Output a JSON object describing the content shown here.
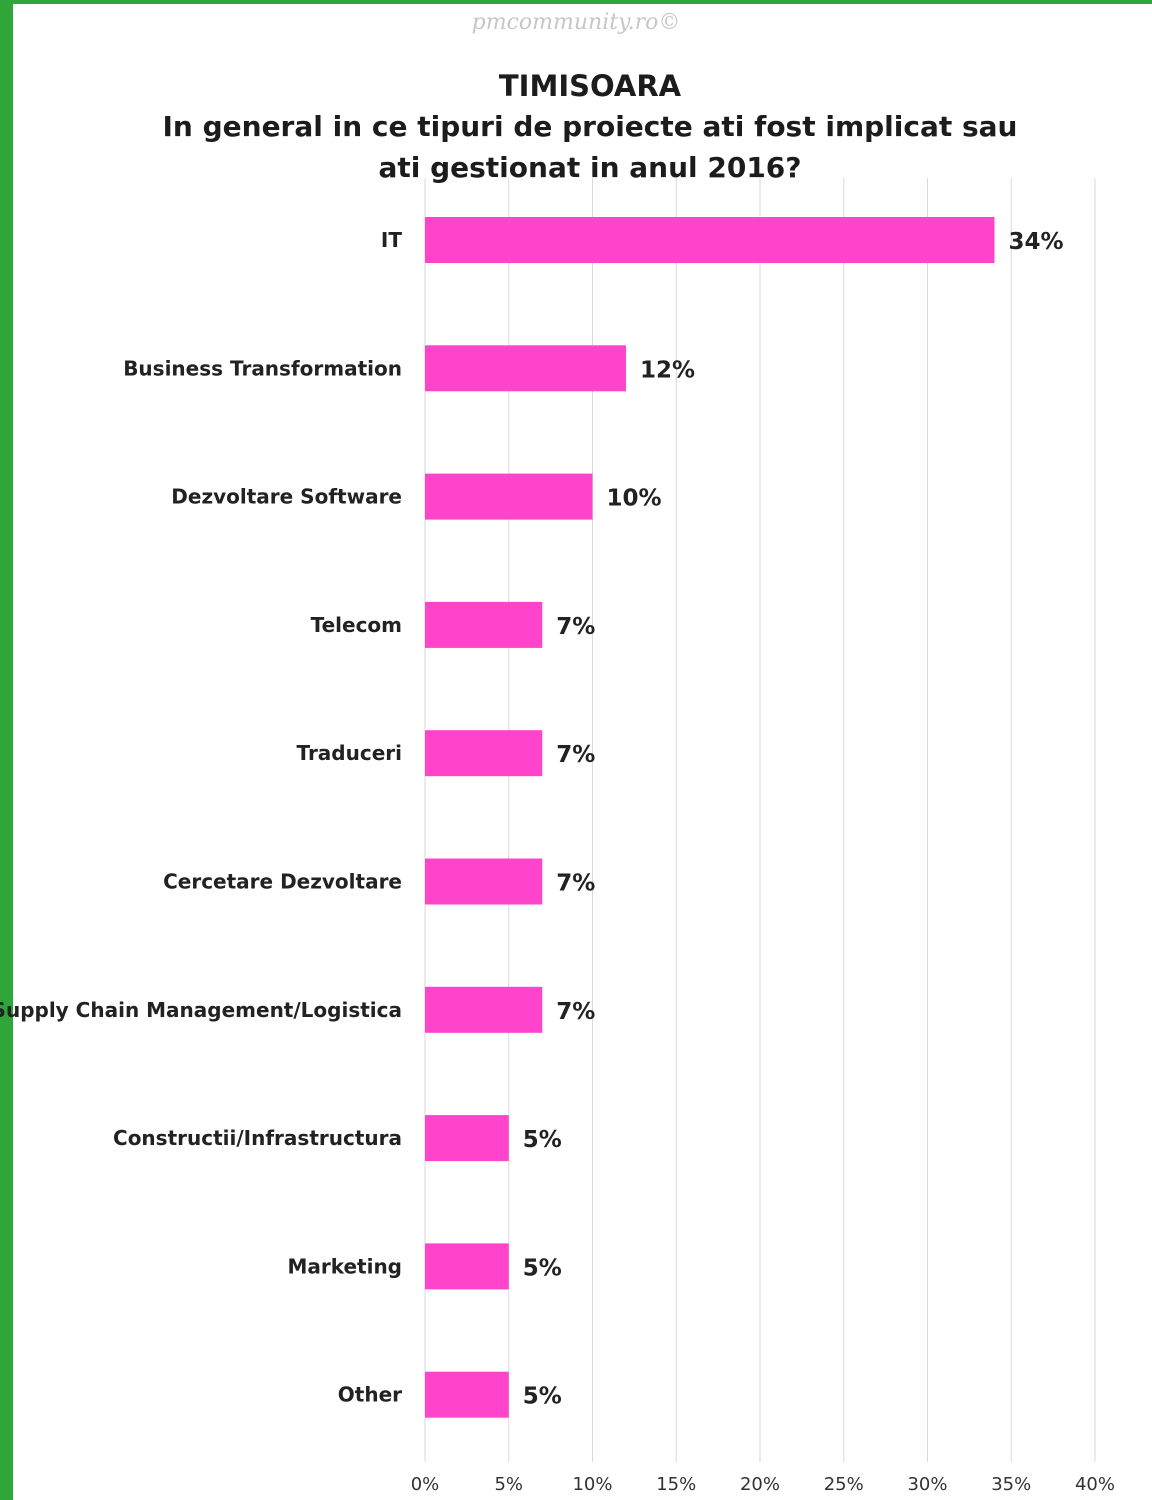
{
  "watermark": "pmcommunity.ro©",
  "colors": {
    "bar": "#ff44cc",
    "grid": "#d9d9d9",
    "frame": "#2fa63a"
  },
  "chart_data": {
    "type": "bar",
    "orientation": "horizontal",
    "title": "TIMISOARA",
    "subtitle": "In general in ce tipuri de proiecte ati fost implicat sau ati gestionat in anul 2016?",
    "categories": [
      "IT",
      "Business Transformation",
      "Dezvoltare Software",
      "Telecom",
      "Traduceri",
      "Cercetare Dezvoltare",
      "Supply Chain Management/Logistica",
      "Constructii/Infrastructura",
      "Marketing",
      "Other"
    ],
    "values": [
      34,
      12,
      10,
      7,
      7,
      7,
      7,
      5,
      5,
      5
    ],
    "value_labels": [
      "34%",
      "12%",
      "10%",
      "7%",
      "7%",
      "7%",
      "7%",
      "5%",
      "5%",
      "5%"
    ],
    "xlim": [
      0,
      40
    ],
    "xticks": [
      0,
      5,
      10,
      15,
      20,
      25,
      30,
      35,
      40
    ],
    "xtick_labels": [
      "0%",
      "5%",
      "10%",
      "15%",
      "20%",
      "25%",
      "30%",
      "35%",
      "40%"
    ],
    "grid": "vertical",
    "legend": "none"
  }
}
